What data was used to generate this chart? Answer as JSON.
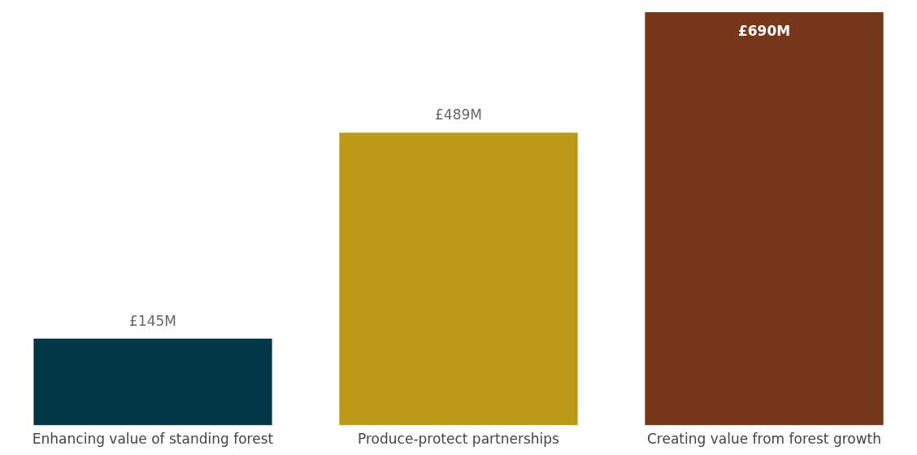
{
  "chart_data": {
    "type": "bar",
    "categories": [
      "Enhancing value of standing forest",
      "Produce-protect partnerships",
      "Creating value from forest growth"
    ],
    "values": [
      145,
      489,
      690
    ],
    "colors": [
      "#023747",
      "#bc9a18",
      "#76371a"
    ],
    "value_labels": [
      "£145M",
      "£489M",
      "£690M"
    ],
    "grid": false,
    "legend": false
  }
}
